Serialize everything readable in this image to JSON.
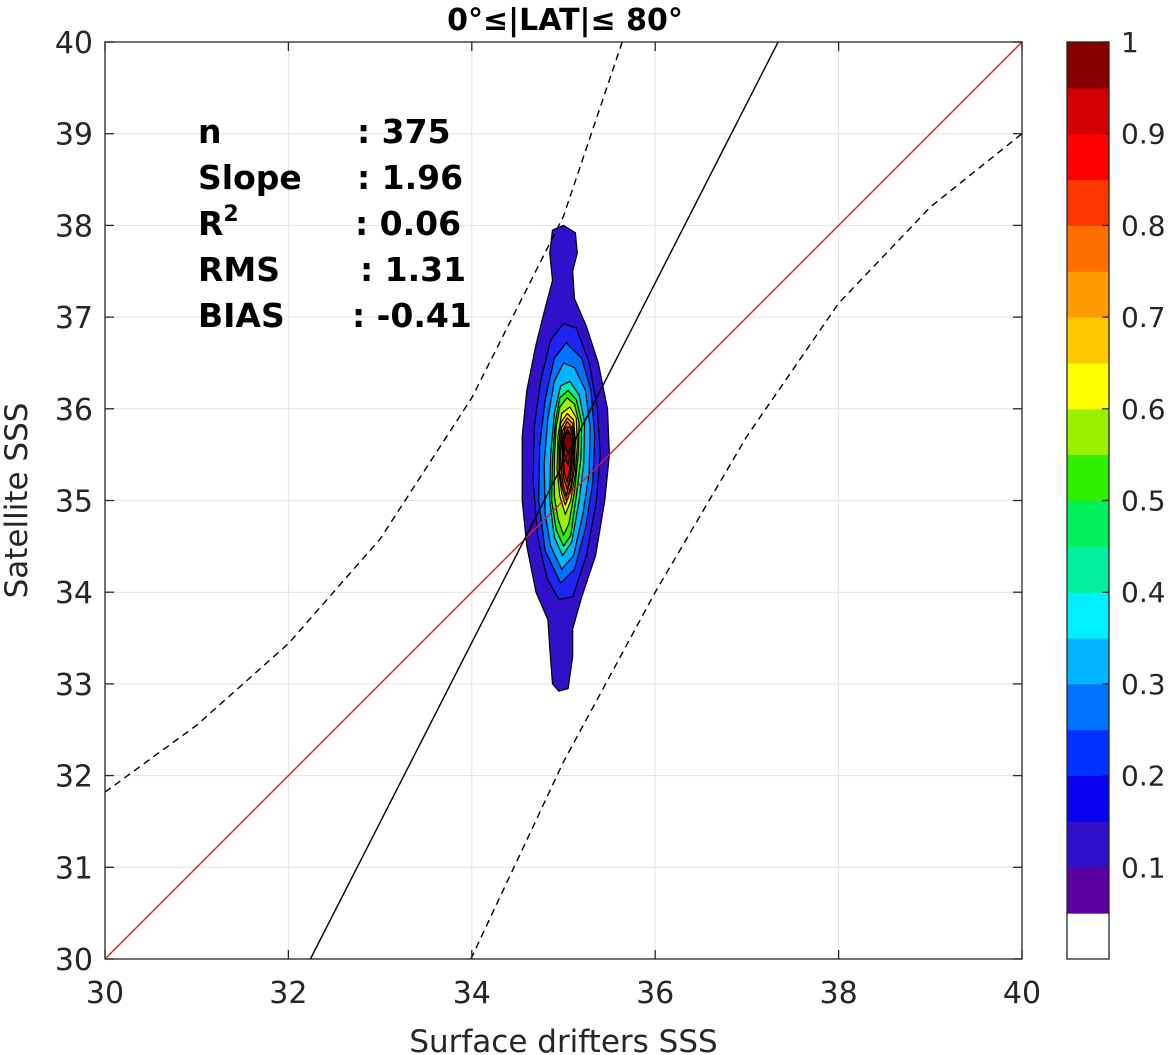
{
  "chart_data": {
    "type": "contour",
    "title": "0°≤|LAT|≤ 80°",
    "xlabel": "Surface drifters SSS",
    "ylabel": "Satellite SSS",
    "xlim": [
      30,
      40
    ],
    "ylim": [
      30,
      40
    ],
    "x_ticks": [
      30,
      32,
      34,
      36,
      38,
      40
    ],
    "y_ticks": [
      30,
      31,
      32,
      33,
      34,
      35,
      36,
      37,
      38,
      39,
      40
    ],
    "grid": true,
    "stats": [
      {
        "label": "n",
        "value": ": 375"
      },
      {
        "label": "Slope",
        "value": ": 1.96"
      },
      {
        "label": "R",
        "sup": "2",
        "value": ": 0.06"
      },
      {
        "label": "RMS",
        "value": ": 1.31"
      },
      {
        "label": "BIAS",
        "value": ": -0.41"
      }
    ],
    "lines": [
      {
        "kind": "one-to-one",
        "color": "#e41a1c",
        "style": "solid",
        "points": [
          [
            30,
            30
          ],
          [
            40,
            40
          ]
        ]
      },
      {
        "kind": "regression",
        "color": "#000000",
        "style": "solid",
        "points": [
          [
            32.24,
            30
          ],
          [
            37.34,
            40
          ]
        ]
      },
      {
        "kind": "upper-bound",
        "color": "#000000",
        "style": "dashed",
        "points": [
          [
            30,
            31.82
          ],
          [
            31,
            32.55
          ],
          [
            32,
            33.44
          ],
          [
            33,
            34.58
          ],
          [
            34,
            36.12
          ],
          [
            35,
            38.1
          ],
          [
            35.64,
            40
          ]
        ]
      },
      {
        "kind": "lower-bound",
        "color": "#000000",
        "style": "dashed",
        "points": [
          [
            33.99,
            30
          ],
          [
            35,
            32.15
          ],
          [
            36,
            34.0
          ],
          [
            37,
            35.7
          ],
          [
            38,
            37.15
          ],
          [
            39,
            38.2
          ],
          [
            40,
            39.0
          ]
        ]
      }
    ],
    "contours": [
      {
        "level": 0.05,
        "color": "#3010C8",
        "points": [
          [
            34.88,
            33.0
          ],
          [
            34.95,
            32.92
          ],
          [
            35.05,
            32.95
          ],
          [
            35.1,
            33.3
          ],
          [
            35.1,
            33.6
          ],
          [
            35.2,
            33.95
          ],
          [
            35.35,
            34.4
          ],
          [
            35.45,
            35.0
          ],
          [
            35.5,
            35.5
          ],
          [
            35.48,
            36.0
          ],
          [
            35.38,
            36.5
          ],
          [
            35.25,
            36.9
          ],
          [
            35.12,
            37.2
          ],
          [
            35.1,
            37.5
          ],
          [
            35.15,
            37.7
          ],
          [
            35.13,
            37.92
          ],
          [
            35.0,
            38.0
          ],
          [
            34.88,
            37.95
          ],
          [
            34.85,
            37.7
          ],
          [
            34.88,
            37.4
          ],
          [
            34.8,
            37.1
          ],
          [
            34.7,
            36.7
          ],
          [
            34.6,
            36.2
          ],
          [
            34.55,
            35.7
          ],
          [
            34.55,
            35.0
          ],
          [
            34.6,
            34.5
          ],
          [
            34.7,
            34.0
          ],
          [
            34.83,
            33.7
          ],
          [
            34.85,
            33.4
          ]
        ]
      },
      {
        "level": 0.15,
        "color": "#1E24F2",
        "points": [
          [
            34.95,
            33.92
          ],
          [
            35.1,
            33.95
          ],
          [
            35.25,
            34.4
          ],
          [
            35.36,
            35.0
          ],
          [
            35.4,
            35.5
          ],
          [
            35.37,
            36.0
          ],
          [
            35.28,
            36.5
          ],
          [
            35.14,
            36.88
          ],
          [
            35.0,
            36.93
          ],
          [
            34.86,
            36.75
          ],
          [
            34.75,
            36.3
          ],
          [
            34.68,
            35.8
          ],
          [
            34.67,
            35.2
          ],
          [
            34.72,
            34.6
          ],
          [
            34.82,
            34.15
          ]
        ]
      },
      {
        "level": 0.25,
        "color": "#0073FF",
        "points": [
          [
            34.97,
            34.1
          ],
          [
            35.12,
            34.25
          ],
          [
            35.24,
            34.7
          ],
          [
            35.32,
            35.2
          ],
          [
            35.34,
            35.7
          ],
          [
            35.3,
            36.2
          ],
          [
            35.2,
            36.55
          ],
          [
            35.03,
            36.72
          ],
          [
            34.9,
            36.55
          ],
          [
            34.8,
            36.1
          ],
          [
            34.74,
            35.6
          ],
          [
            34.73,
            35.0
          ],
          [
            34.8,
            34.45
          ]
        ]
      },
      {
        "level": 0.35,
        "color": "#00B4FF",
        "points": [
          [
            34.98,
            34.25
          ],
          [
            35.11,
            34.4
          ],
          [
            35.21,
            34.85
          ],
          [
            35.28,
            35.3
          ],
          [
            35.29,
            35.8
          ],
          [
            35.24,
            36.2
          ],
          [
            35.12,
            36.45
          ],
          [
            35.0,
            36.5
          ],
          [
            34.9,
            36.3
          ],
          [
            34.83,
            35.9
          ],
          [
            34.79,
            35.4
          ],
          [
            34.8,
            34.85
          ],
          [
            34.86,
            34.5
          ]
        ]
      },
      {
        "level": 0.45,
        "color": "#00F0A0",
        "points": [
          [
            34.99,
            34.4
          ],
          [
            35.09,
            34.55
          ],
          [
            35.17,
            35.0
          ],
          [
            35.22,
            35.4
          ],
          [
            35.23,
            35.85
          ],
          [
            35.17,
            36.15
          ],
          [
            35.07,
            36.3
          ],
          [
            34.97,
            36.25
          ],
          [
            34.9,
            35.95
          ],
          [
            34.86,
            35.5
          ],
          [
            34.85,
            35.0
          ],
          [
            34.9,
            34.6
          ]
        ]
      },
      {
        "level": 0.5,
        "color": "#2DF000",
        "points": [
          [
            35.0,
            34.5
          ],
          [
            35.08,
            34.62
          ],
          [
            35.14,
            35.05
          ],
          [
            35.19,
            35.45
          ],
          [
            35.2,
            35.85
          ],
          [
            35.14,
            36.1
          ],
          [
            35.05,
            36.2
          ],
          [
            34.96,
            36.12
          ],
          [
            34.91,
            35.85
          ],
          [
            34.88,
            35.45
          ],
          [
            34.87,
            35.0
          ],
          [
            34.92,
            34.68
          ]
        ]
      },
      {
        "level": 0.55,
        "color": "#9BF000",
        "points": [
          [
            35.0,
            34.62
          ],
          [
            35.06,
            34.75
          ],
          [
            35.12,
            35.1
          ],
          [
            35.16,
            35.5
          ],
          [
            35.17,
            35.85
          ],
          [
            35.12,
            36.05
          ],
          [
            35.04,
            36.12
          ],
          [
            34.96,
            36.02
          ],
          [
            34.92,
            35.8
          ],
          [
            34.9,
            35.45
          ],
          [
            34.9,
            35.05
          ],
          [
            34.94,
            34.8
          ]
        ]
      },
      {
        "level": 0.6,
        "color": "#FFFF00",
        "points": [
          [
            35.02,
            34.85
          ],
          [
            35.08,
            35.0
          ],
          [
            35.13,
            35.3
          ],
          [
            35.15,
            35.6
          ],
          [
            35.14,
            35.9
          ],
          [
            35.07,
            36.02
          ],
          [
            34.98,
            35.95
          ],
          [
            34.94,
            35.7
          ],
          [
            34.93,
            35.35
          ],
          [
            34.96,
            35.05
          ]
        ]
      },
      {
        "level": 0.7,
        "color": "#FFC800",
        "points": [
          [
            35.02,
            34.95
          ],
          [
            35.08,
            35.1
          ],
          [
            35.12,
            35.35
          ],
          [
            35.13,
            35.65
          ],
          [
            35.11,
            35.88
          ],
          [
            35.04,
            35.95
          ],
          [
            34.97,
            35.85
          ],
          [
            34.95,
            35.6
          ],
          [
            34.95,
            35.3
          ],
          [
            34.98,
            35.08
          ]
        ]
      },
      {
        "level": 0.75,
        "color": "#FF9B00",
        "points": [
          [
            35.03,
            35.0
          ],
          [
            35.08,
            35.15
          ],
          [
            35.11,
            35.4
          ],
          [
            35.12,
            35.65
          ],
          [
            35.1,
            35.84
          ],
          [
            35.04,
            35.9
          ],
          [
            34.98,
            35.8
          ],
          [
            34.96,
            35.55
          ],
          [
            34.96,
            35.3
          ],
          [
            34.99,
            35.12
          ]
        ]
      },
      {
        "level": 0.8,
        "color": "#FF6E00",
        "points": [
          [
            35.03,
            35.05
          ],
          [
            35.07,
            35.2
          ],
          [
            35.1,
            35.45
          ],
          [
            35.11,
            35.68
          ],
          [
            35.09,
            35.8
          ],
          [
            35.04,
            35.86
          ],
          [
            34.99,
            35.76
          ],
          [
            34.97,
            35.5
          ],
          [
            34.98,
            35.28
          ],
          [
            35.0,
            35.15
          ]
        ]
      },
      {
        "level": 0.85,
        "color": "#FF3700",
        "points": [
          [
            35.04,
            35.12
          ],
          [
            35.07,
            35.25
          ],
          [
            35.09,
            35.5
          ],
          [
            35.1,
            35.7
          ],
          [
            35.07,
            35.8
          ],
          [
            35.02,
            35.8
          ],
          [
            34.99,
            35.65
          ],
          [
            34.99,
            35.42
          ],
          [
            35.0,
            35.25
          ]
        ]
      },
      {
        "level": 0.9,
        "color": "#FF0000",
        "points": [
          [
            35.04,
            35.2
          ],
          [
            35.07,
            35.35
          ],
          [
            35.09,
            35.55
          ],
          [
            35.08,
            35.72
          ],
          [
            35.04,
            35.78
          ],
          [
            35.0,
            35.68
          ],
          [
            35.0,
            35.45
          ],
          [
            35.01,
            35.3
          ]
        ]
      },
      {
        "level": 0.95,
        "color": "#D20000",
        "points": [
          [
            35.05,
            35.38
          ],
          [
            35.07,
            35.5
          ],
          [
            35.08,
            35.65
          ],
          [
            35.05,
            35.75
          ],
          [
            35.01,
            35.68
          ],
          [
            35.01,
            35.5
          ]
        ]
      },
      {
        "level": 1.0,
        "color": "#870000",
        "points": [
          [
            35.05,
            35.5
          ],
          [
            35.1,
            35.62
          ],
          [
            35.05,
            35.76
          ],
          [
            35.0,
            35.65
          ]
        ]
      }
    ],
    "colorbar": {
      "min": 0,
      "max": 1,
      "ticks": [
        0.1,
        0.2,
        0.3,
        0.4,
        0.5,
        0.6,
        0.7,
        0.8,
        0.9,
        1
      ],
      "tick_labels": [
        "0.1",
        "0.2",
        "0.3",
        "0.4",
        "0.5",
        "0.6",
        "0.7",
        "0.8",
        "0.9",
        "1"
      ],
      "bins": [
        {
          "from": 0.0,
          "to": 0.05,
          "color": "#FFFFFF"
        },
        {
          "from": 0.05,
          "to": 0.1,
          "color": "#5A00A0"
        },
        {
          "from": 0.1,
          "to": 0.15,
          "color": "#3010C8"
        },
        {
          "from": 0.15,
          "to": 0.2,
          "color": "#0A00F0"
        },
        {
          "from": 0.2,
          "to": 0.25,
          "color": "#0032FF"
        },
        {
          "from": 0.25,
          "to": 0.3,
          "color": "#0073FF"
        },
        {
          "from": 0.3,
          "to": 0.35,
          "color": "#00B4FF"
        },
        {
          "from": 0.35,
          "to": 0.4,
          "color": "#00F0FF"
        },
        {
          "from": 0.4,
          "to": 0.45,
          "color": "#00F0A0"
        },
        {
          "from": 0.45,
          "to": 0.5,
          "color": "#00F05A"
        },
        {
          "from": 0.5,
          "to": 0.55,
          "color": "#2DF000"
        },
        {
          "from": 0.55,
          "to": 0.6,
          "color": "#9BF000"
        },
        {
          "from": 0.6,
          "to": 0.65,
          "color": "#FFFF00"
        },
        {
          "from": 0.65,
          "to": 0.7,
          "color": "#FFC800"
        },
        {
          "from": 0.7,
          "to": 0.75,
          "color": "#FF9B00"
        },
        {
          "from": 0.75,
          "to": 0.8,
          "color": "#FF6E00"
        },
        {
          "from": 0.8,
          "to": 0.85,
          "color": "#FF3700"
        },
        {
          "from": 0.85,
          "to": 0.9,
          "color": "#FF0000"
        },
        {
          "from": 0.9,
          "to": 0.95,
          "color": "#D20000"
        },
        {
          "from": 0.95,
          "to": 1.0,
          "color": "#870000"
        }
      ]
    }
  }
}
